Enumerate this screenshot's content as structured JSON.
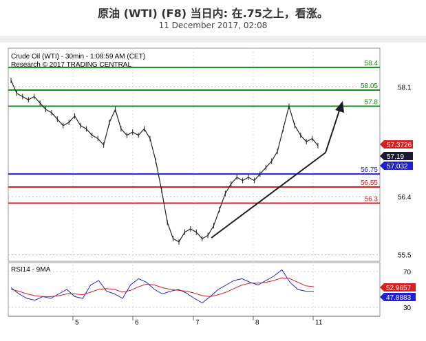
{
  "header": {
    "title": "原油 (WTI) (F8) 当日内: 在.75之上，看涨。",
    "subtitle": "11 December 2017, 02:08"
  },
  "chart_data": [
    {
      "type": "line",
      "panel": "price",
      "info_line1": "Crude Oil (WTI) - 30min - 1:08:59 AM (CET)",
      "info_line2": "Research © 2017 TRADING CENTRAL",
      "x_ticks": [
        "5",
        "6",
        "7",
        "8",
        "11"
      ],
      "y_ticks": [
        58.1,
        56.4,
        55.5
      ],
      "ylim": [
        55.4,
        58.7
      ],
      "grid": true,
      "series": [
        {
          "values": [
            58.2,
            58.0,
            57.95,
            57.9,
            57.95,
            57.85,
            57.75,
            57.7,
            57.6,
            57.5,
            57.55,
            57.65,
            57.5,
            57.45,
            57.35,
            57.3,
            57.2,
            57.55,
            57.75,
            57.45,
            57.35,
            57.4,
            57.35,
            57.45,
            57.3,
            56.95,
            56.5,
            56.0,
            55.75,
            55.7,
            55.85,
            55.9,
            55.85,
            55.75,
            55.8,
            55.95,
            56.2,
            56.45,
            56.6,
            56.7,
            56.65,
            56.7,
            56.65,
            56.75,
            56.85,
            56.95,
            57.1,
            57.45,
            57.8,
            57.5,
            57.35,
            57.25,
            57.3,
            57.19
          ]
        }
      ],
      "levels": [
        {
          "value": 58.4,
          "label": "58.4",
          "color": "#1a8c1a"
        },
        {
          "value": 58.05,
          "label": "58.05",
          "color": "#1a8c1a"
        },
        {
          "value": 57.8,
          "label": "57.8",
          "color": "#1a8c1a"
        },
        {
          "value": 56.75,
          "label": "56.75",
          "color": "#1f1fd6"
        },
        {
          "value": 56.55,
          "label": "56.55",
          "color": "#d61f1f"
        },
        {
          "value": 56.3,
          "label": "56.3",
          "color": "#d61f1f"
        }
      ],
      "value_tags": [
        {
          "label": "57.3726",
          "color": "#d61f1f"
        },
        {
          "label": "57.19",
          "color": "#1a1a2e"
        },
        {
          "label": "57.032",
          "color": "#1f1fd6"
        }
      ]
    },
    {
      "type": "line",
      "panel": "rsi",
      "title": "RSI14 - 9MA",
      "y_ticks": [
        70,
        30
      ],
      "ylim": [
        20,
        80
      ],
      "series": [
        {
          "name": "RSI14",
          "color": "#1f1fd6",
          "values": [
            52,
            45,
            40,
            38,
            42,
            40,
            45,
            50,
            42,
            40,
            55,
            60,
            48,
            45,
            40,
            55,
            62,
            58,
            50,
            45,
            48,
            50,
            46,
            40,
            35,
            42,
            50,
            55,
            60,
            62,
            58,
            55,
            60,
            65,
            72,
            58,
            50,
            48,
            47.8883
          ]
        },
        {
          "name": "9MA",
          "color": "#d61f1f",
          "values": [
            50,
            48,
            45,
            43,
            42,
            42,
            43,
            45,
            45,
            44,
            47,
            50,
            51,
            50,
            47,
            49,
            53,
            56,
            55,
            52,
            50,
            49,
            48,
            46,
            43,
            42,
            44,
            47,
            51,
            55,
            57,
            57,
            58,
            60,
            63,
            62,
            58,
            54,
            52.9657
          ]
        }
      ],
      "value_tags": [
        {
          "label": "52.9657",
          "color": "#d61f1f"
        },
        {
          "label": "47.8883",
          "color": "#1f1fd6"
        }
      ]
    }
  ]
}
